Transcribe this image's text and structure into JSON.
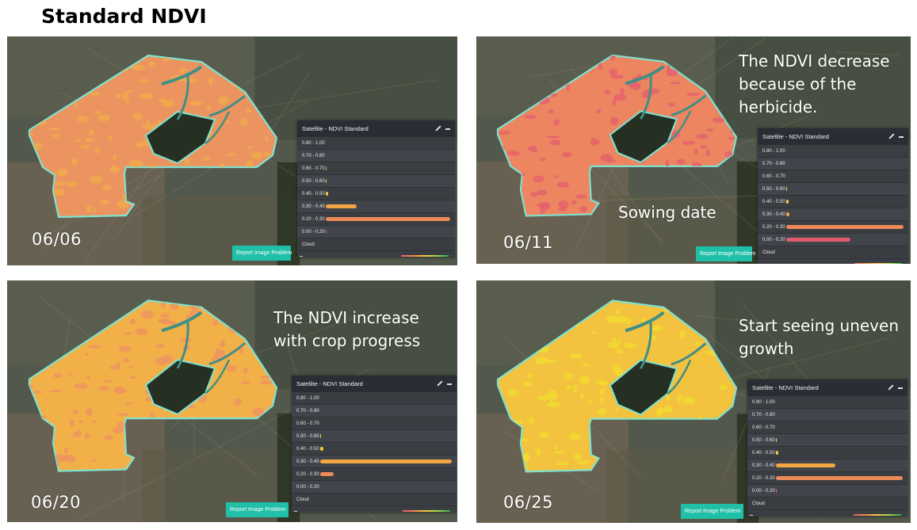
{
  "page_title": "Standard NDVI",
  "legend_title": "Satellite - NDVI Standard",
  "report_button_label": "Report Image Problem",
  "legend_ranges": [
    "0.80 - 1.00",
    "0.70 - 0.80",
    "0.60 - 0.70",
    "0.50 - 0.60",
    "0.40 - 0.50",
    "0.30 - 0.40",
    "0.20 - 0.30",
    "0.00 - 0.20",
    "Cloud"
  ],
  "range_colors": [
    "#2fa84f",
    "#6cc04a",
    "#9dd54a",
    "#d7df3f",
    "#f5c842",
    "#f2a542",
    "#ec8a58",
    "#e05c6c",
    "#cccccc"
  ],
  "panels": [
    {
      "date": "06/06",
      "annotation": "",
      "field_color": "#ec9460",
      "speckle_color": "#f0ae4a",
      "shares": [
        0,
        0,
        0.003,
        0.006,
        0.02,
        0.25,
        1.0,
        0.003,
        0
      ]
    },
    {
      "date": "06/11",
      "annotation": "The NDVI decrease because of the herbicide.",
      "annotation2": "Sowing date",
      "field_color": "#ec8560",
      "speckle_color": "#e45f6d",
      "shares": [
        0,
        0,
        0,
        0.003,
        0.01,
        0.03,
        1.0,
        0.55,
        0
      ]
    },
    {
      "date": "06/20",
      "annotation": "The NDVI increase with crop progress",
      "field_color": "#f2b148",
      "speckle_color": "#ee9260",
      "shares": [
        0,
        0,
        0,
        0.005,
        0.025,
        1.0,
        0.1,
        0,
        0
      ]
    },
    {
      "date": "06/25",
      "annotation": "Start seeing uneven growth",
      "field_color": "#f3c23e",
      "speckle_color": "#f2dc30",
      "shares": [
        0,
        0,
        0,
        0.003,
        0.02,
        0.47,
        1.0,
        0.003,
        0
      ]
    }
  ]
}
